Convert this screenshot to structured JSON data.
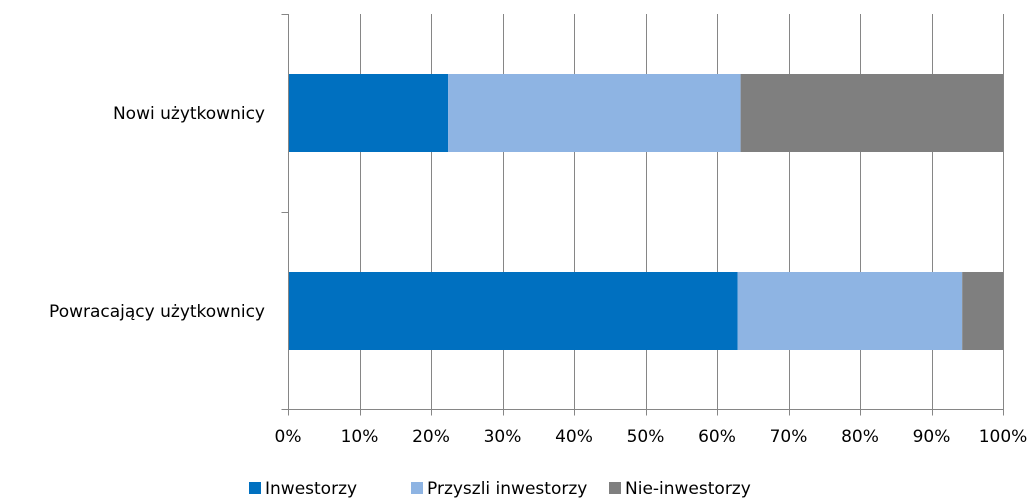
{
  "chart_data": {
    "type": "bar",
    "orientation": "horizontal",
    "stacked": "percent",
    "categories": [
      "Nowi użytkownicy",
      "Powracający użytkownicy"
    ],
    "series": [
      {
        "name": "Inwestorzy",
        "color": "#0070C0",
        "values": [
          22.4,
          62.9
        ]
      },
      {
        "name": "Przyszli inwestorzy",
        "color": "#8EB4E3",
        "values": [
          40.9,
          31.4
        ]
      },
      {
        "name": "Nie-inwestorzy",
        "color": "#7F7F7F",
        "values": [
          36.7,
          5.7
        ]
      }
    ],
    "xlim": [
      0,
      100
    ],
    "x_ticks": [
      0,
      10,
      20,
      30,
      40,
      50,
      60,
      70,
      80,
      90,
      100
    ],
    "x_tick_labels": [
      "0%",
      "10%",
      "20%",
      "30%",
      "40%",
      "50%",
      "60%",
      "70%",
      "80%",
      "90%",
      "100%"
    ],
    "grid": true,
    "legend_position": "bottom",
    "title": "",
    "xlabel": "",
    "ylabel": ""
  }
}
